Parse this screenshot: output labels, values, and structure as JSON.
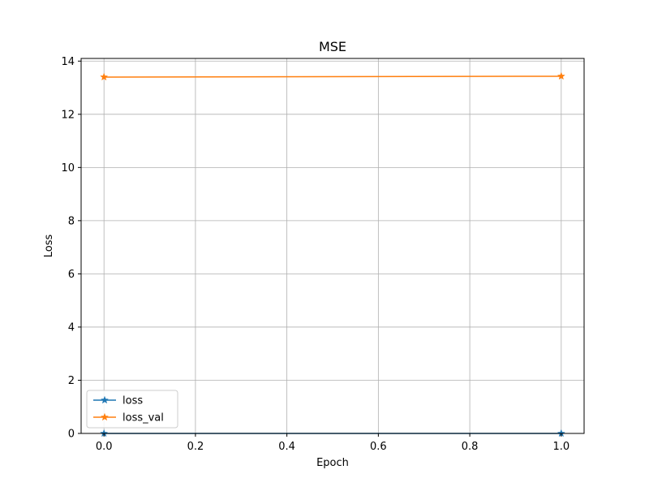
{
  "chart_data": {
    "type": "line",
    "title": "MSE",
    "xlabel": "Epoch",
    "ylabel": "Loss",
    "x": [
      0.0,
      1.0
    ],
    "xlim": [
      -0.05,
      1.05
    ],
    "ylim": [
      0,
      14.1
    ],
    "xticks": [
      0.0,
      0.2,
      0.4,
      0.6,
      0.8,
      1.0
    ],
    "xtick_labels": [
      "0.0",
      "0.2",
      "0.4",
      "0.6",
      "0.8",
      "1.0"
    ],
    "yticks": [
      0,
      2,
      4,
      6,
      8,
      10,
      12,
      14
    ],
    "ytick_labels": [
      "0",
      "2",
      "4",
      "6",
      "8",
      "10",
      "12",
      "14"
    ],
    "grid": true,
    "legend_position": "lower-left",
    "marker": "star",
    "series": [
      {
        "name": "loss",
        "color": "#1f77b4",
        "values": [
          0.0,
          0.0
        ]
      },
      {
        "name": "loss_val",
        "color": "#ff7f0e",
        "values": [
          13.4,
          13.43
        ]
      }
    ]
  }
}
